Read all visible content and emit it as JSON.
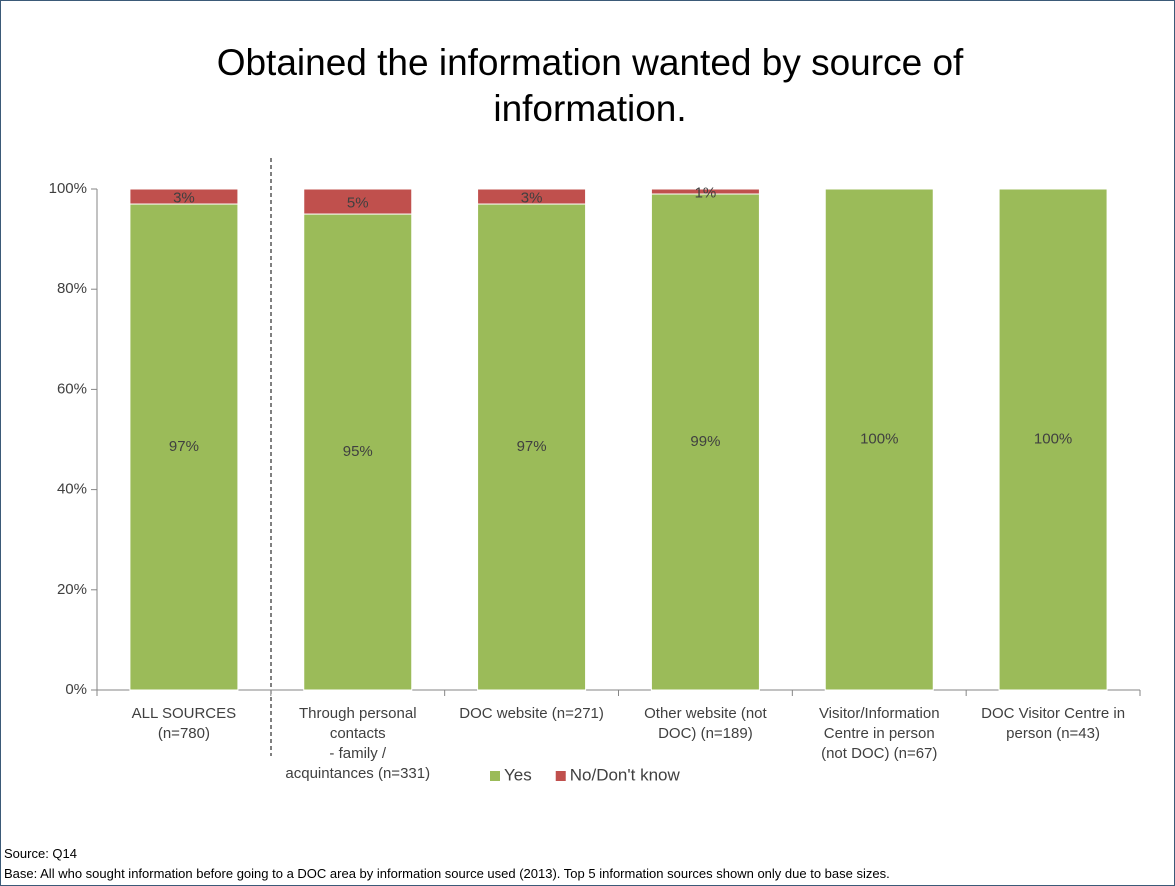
{
  "chart_data": {
    "type": "stacked_bar",
    "title": "Obtained the information wanted by source of information.",
    "categories": [
      "ALL SOURCES\n(n=780)",
      "Through personal\ncontacts\n- family /\nacquintances (n=331)",
      "DOC website (n=271)",
      "Other website (not\nDOC) (n=189)",
      "Visitor/Information\nCentre in person\n(not DOC) (n=67)",
      "DOC Visitor Centre in\nperson (n=43)"
    ],
    "series": [
      {
        "name": "Yes",
        "color": "#9bbb59",
        "values": [
          97,
          95,
          97,
          99,
          100,
          100
        ],
        "value_labels": [
          "97%",
          "95%",
          "97%",
          "99%",
          "100%",
          "100%"
        ]
      },
      {
        "name": "No/Don't know",
        "color": "#c0504d",
        "values": [
          3,
          5,
          3,
          1,
          null,
          null
        ],
        "value_labels": [
          "3%",
          "5%",
          "3%",
          "1%",
          null,
          null
        ]
      }
    ],
    "ylim": [
      0,
      100
    ],
    "yticks": [
      {
        "value": 0,
        "label": "0%"
      },
      {
        "value": 20,
        "label": "20%"
      },
      {
        "value": 40,
        "label": "40%"
      },
      {
        "value": 60,
        "label": "60%"
      },
      {
        "value": 80,
        "label": "80%"
      },
      {
        "value": 100,
        "label": "100%"
      }
    ],
    "legend": "bottom",
    "source": "Source: Q14",
    "base": "Base: All who sought information before going to a DOC area by information source used (2013). Top 5 information sources shown only due to base sizes."
  }
}
